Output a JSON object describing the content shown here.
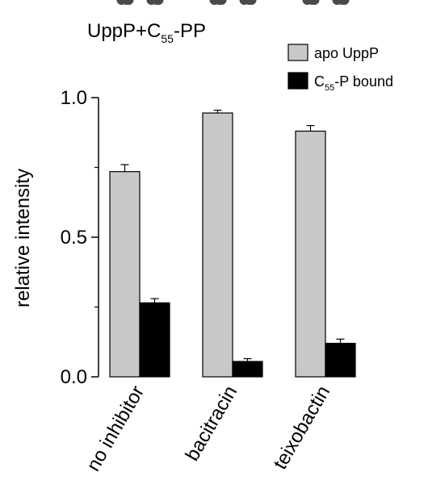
{
  "chart_data": {
    "type": "bar",
    "title": {
      "main": "UppP+C",
      "sub": "55",
      "tail": "-PP"
    },
    "ylabel": "relative intensity",
    "xlabel": "",
    "ylim": [
      0,
      1.0
    ],
    "yticks": [
      0.0,
      0.5,
      1.0
    ],
    "ytick_labels": [
      "0.0",
      "0.5",
      "1.0"
    ],
    "categories": [
      "no inhibitor",
      "bacitracin",
      "teixobactin"
    ],
    "legend_position": "top-right",
    "series": [
      {
        "name": "apo UppP",
        "legend": {
          "main": "apo UppP",
          "sub": "",
          "tail": ""
        },
        "color": "#c8c8c8",
        "values": [
          0.735,
          0.945,
          0.88
        ],
        "errors": [
          0.025,
          0.01,
          0.02
        ],
        "points": [
          [
            0.75,
            0.72,
            0.765
          ],
          [
            0.95,
            0.935,
            0.94
          ],
          [
            0.89,
            0.875,
            0.9
          ]
        ]
      },
      {
        "name": "C55-P bound",
        "legend": {
          "main": "C",
          "sub": "55",
          "tail": "-P bound"
        },
        "color": "#000000",
        "values": [
          0.265,
          0.055,
          0.12
        ],
        "errors": [
          0.015,
          0.01,
          0.015
        ],
        "points": [
          [
            0.25,
            0.275,
            0.28
          ],
          [
            0.05,
            0.06,
            0.065
          ],
          [
            0.115,
            0.13,
            0.11
          ]
        ]
      }
    ],
    "point_color": "#4a4a4a",
    "grid": false
  }
}
